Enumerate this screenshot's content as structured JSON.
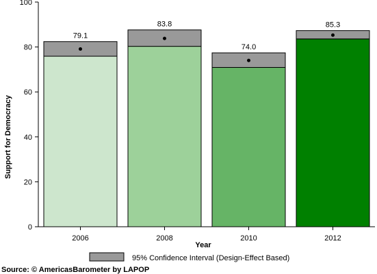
{
  "chart_data": {
    "type": "bar",
    "categories": [
      "2006",
      "2008",
      "2010",
      "2012"
    ],
    "values": [
      79.1,
      83.8,
      74.0,
      85.3
    ],
    "ci_lower": [
      75.9,
      80.3,
      70.9,
      83.6
    ],
    "ci_upper": [
      82.4,
      87.6,
      77.4,
      87.3
    ],
    "xlabel": "Year",
    "ylabel": "Support for Democracy",
    "ylim": [
      0,
      100
    ],
    "yticks": [
      0,
      20,
      40,
      60,
      80,
      100
    ],
    "bar_colors": [
      "#cde6cd",
      "#9dd19a",
      "#66b466",
      "#008000"
    ],
    "ci_color": "#999999",
    "legend": {
      "label": "95% Confidence Interval (Design-Effect Based)",
      "placement": "bottom-center"
    },
    "grid": false
  },
  "source": "Source: © AmericasBarometer by LAPOP"
}
